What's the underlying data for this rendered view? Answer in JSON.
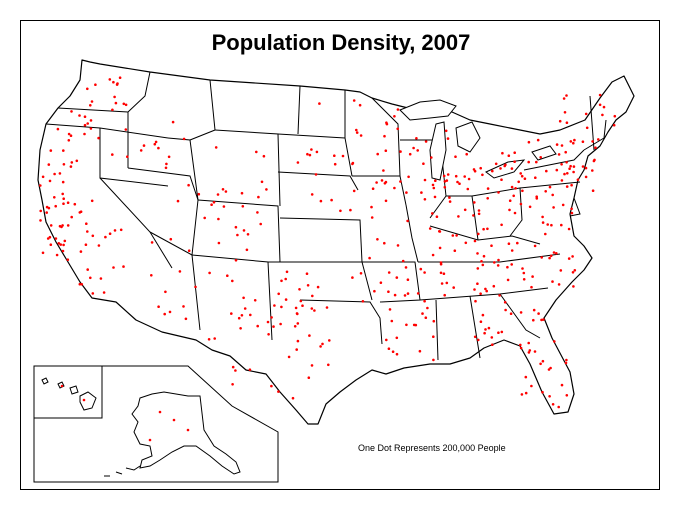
{
  "map": {
    "title": "Population Density, 2007",
    "caption": "One Dot Represents 200,000 People",
    "dot_color": "#ff0000",
    "line_color": "#000000",
    "background_color": "#ffffff"
  }
}
